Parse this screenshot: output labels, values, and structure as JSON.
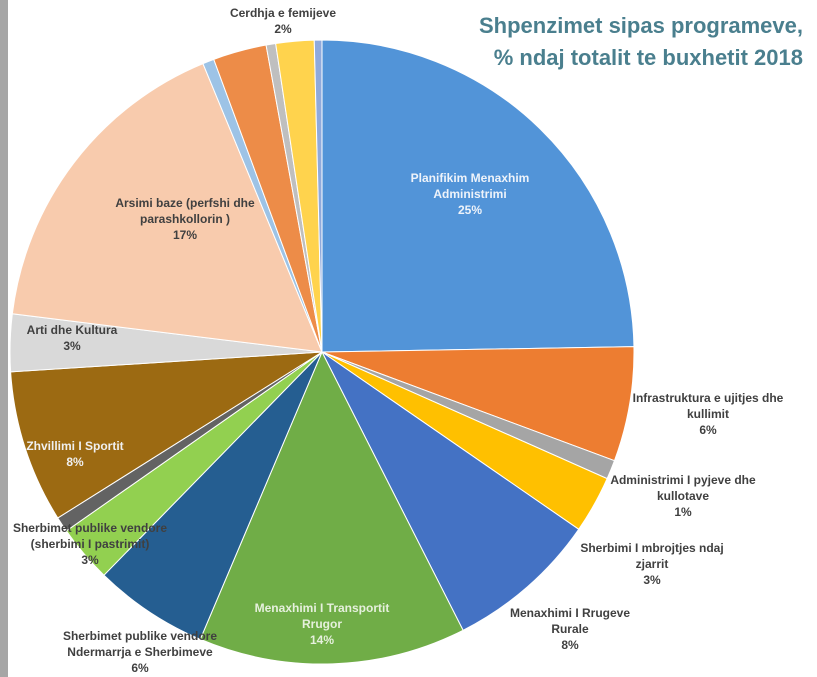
{
  "chart_data": {
    "type": "pie",
    "title": "Shpenzimet sipas programeve,\n% ndaj totalit te buxhetit 2018",
    "categories": [
      "Planifikim Menaxhim Administrimi",
      "Infrastruktura e ujitjes dhe kullimit",
      "Administrimi I pyjeve dhe kullotave",
      "Sherbimi I mbrojtjes ndaj zjarrit",
      "Menaxhimi I Rrugeve Rurale",
      "Menaxhimi I Transportit Rrugor",
      "Sherbimet publike vendore Ndermarrja e Sherbimeve",
      "Sherbimet publike vendore (sherbimi I pastrimit)",
      null,
      "Zhvillimi I Sportit",
      "Arti dhe Kultura",
      "Arsimi baze (perfshi dhe parashkollorin )",
      null,
      null,
      null,
      "Cerdhja e femijeve",
      null
    ],
    "values": [
      25,
      6,
      1,
      3,
      8,
      14,
      6,
      3,
      0.8,
      8,
      3,
      17,
      0.6,
      2.8,
      0.5,
      2,
      0.4
    ],
    "value_labels": [
      "25%",
      "6%",
      "1%",
      "3%",
      "8%",
      "14%",
      "6%",
      "3%",
      null,
      "8%",
      "3%",
      "17%",
      null,
      null,
      null,
      "2%",
      null
    ],
    "colors": [
      "#5294d8",
      "#ed7d31",
      "#a5a5a5",
      "#ffc000",
      "#4472c4",
      "#70ad47",
      "#255e91",
      "#92d050",
      "#636363",
      "#9c6a12",
      "#d9d9d9",
      "#f8cbad",
      "#9dc3e6",
      "#ed8c48",
      "#bfbfbf",
      "#ffd34d",
      "#8faadc"
    ]
  }
}
